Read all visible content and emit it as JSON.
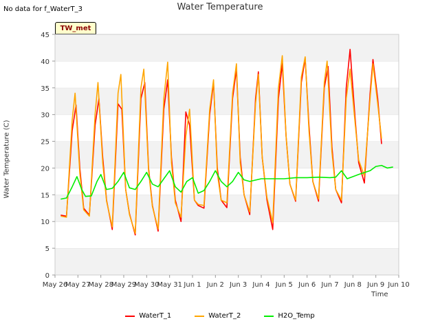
{
  "header": {
    "note": "No data for f_WaterT_3",
    "title": "Water Temperature",
    "badge": "TW_met"
  },
  "chart_data": {
    "type": "line",
    "title": "Water Temperature",
    "xlabel": "Time",
    "ylabel": "Water Temperature (C)",
    "xlim": [
      "2024-05-26",
      "2024-06-10"
    ],
    "ylim": [
      0,
      45
    ],
    "x_ticks": [
      "May 26",
      "May 27",
      "May 28",
      "May 29",
      "May 30",
      "May 31",
      "Jun 1",
      "Jun 2",
      "Jun 3",
      "Jun 4",
      "Jun 5",
      "Jun 6",
      "Jun 7",
      "Jun 8",
      "Jun 9",
      "Jun 10"
    ],
    "y_ticks": [
      0,
      5,
      10,
      15,
      20,
      25,
      30,
      35,
      40,
      45
    ],
    "grid": true,
    "legend_position": "bottom",
    "series": [
      {
        "name": "WaterT_1",
        "color": "#ff0000",
        "points": [
          [
            "2024-05-26T06:00",
            11.2
          ],
          [
            "2024-05-26T12:00",
            11.0
          ],
          [
            "2024-05-26T18:00",
            27.0
          ],
          [
            "2024-05-26T22:00",
            31.8
          ],
          [
            "2024-05-27T02:00",
            20.0
          ],
          [
            "2024-05-27T06:00",
            12.5
          ],
          [
            "2024-05-27T12:00",
            11.2
          ],
          [
            "2024-05-27T18:00",
            28.0
          ],
          [
            "2024-05-27T22:00",
            33.0
          ],
          [
            "2024-05-28T02:00",
            22.0
          ],
          [
            "2024-05-28T06:00",
            14.0
          ],
          [
            "2024-05-28T12:00",
            8.5
          ],
          [
            "2024-05-28T18:00",
            32.0
          ],
          [
            "2024-05-28T22:00",
            31.0
          ],
          [
            "2024-05-29T02:00",
            16.0
          ],
          [
            "2024-05-29T06:00",
            11.5
          ],
          [
            "2024-05-29T12:00",
            7.5
          ],
          [
            "2024-05-29T18:00",
            33.0
          ],
          [
            "2024-05-29T22:00",
            36.0
          ],
          [
            "2024-05-30T02:00",
            20.0
          ],
          [
            "2024-05-30T06:00",
            13.0
          ],
          [
            "2024-05-30T12:00",
            8.2
          ],
          [
            "2024-05-30T18:00",
            31.0
          ],
          [
            "2024-05-30T22:00",
            36.5
          ],
          [
            "2024-05-31T02:00",
            22.0
          ],
          [
            "2024-05-31T06:00",
            14.0
          ],
          [
            "2024-05-31T12:00",
            10.0
          ],
          [
            "2024-05-31T17:00",
            30.5
          ],
          [
            "2024-05-31T21:00",
            28.0
          ],
          [
            "2024-06-01T02:00",
            14.0
          ],
          [
            "2024-06-01T06:00",
            13.0
          ],
          [
            "2024-06-01T12:00",
            12.5
          ],
          [
            "2024-06-01T18:00",
            30.0
          ],
          [
            "2024-06-01T22:00",
            36.0
          ],
          [
            "2024-06-02T02:00",
            20.0
          ],
          [
            "2024-06-02T06:00",
            14.0
          ],
          [
            "2024-06-02T12:00",
            12.6
          ],
          [
            "2024-06-02T18:00",
            33.0
          ],
          [
            "2024-06-02T22:00",
            38.5
          ],
          [
            "2024-06-03T02:00",
            22.0
          ],
          [
            "2024-06-03T06:00",
            15.0
          ],
          [
            "2024-06-03T12:00",
            11.3
          ],
          [
            "2024-06-03T18:00",
            33.0
          ],
          [
            "2024-06-03T21:00",
            38.0
          ],
          [
            "2024-06-04T01:00",
            22.0
          ],
          [
            "2024-06-04T06:00",
            14.0
          ],
          [
            "2024-06-04T12:00",
            8.5
          ],
          [
            "2024-06-04T18:00",
            33.0
          ],
          [
            "2024-06-04T22:00",
            39.5
          ],
          [
            "2024-06-05T02:00",
            26.0
          ],
          [
            "2024-06-05T06:00",
            17.0
          ],
          [
            "2024-06-05T12:00",
            13.8
          ],
          [
            "2024-06-05T18:00",
            36.0
          ],
          [
            "2024-06-05T22:00",
            40.5
          ],
          [
            "2024-06-06T02:00",
            28.0
          ],
          [
            "2024-06-06T06:00",
            17.5
          ],
          [
            "2024-06-06T12:00",
            13.8
          ],
          [
            "2024-06-06T18:00",
            35.0
          ],
          [
            "2024-06-06T22:00",
            39.0
          ],
          [
            "2024-06-07T02:00",
            24.0
          ],
          [
            "2024-06-07T06:00",
            16.0
          ],
          [
            "2024-06-07T12:00",
            13.5
          ],
          [
            "2024-06-07T17:00",
            35.0
          ],
          [
            "2024-06-07T21:00",
            42.2
          ],
          [
            "2024-06-08T02:00",
            30.0
          ],
          [
            "2024-06-08T06:00",
            21.0
          ],
          [
            "2024-06-08T12:00",
            17.2
          ],
          [
            "2024-06-08T18:00",
            34.0
          ],
          [
            "2024-06-08T21:00",
            40.3
          ],
          [
            "2024-06-09T02:00",
            33.0
          ],
          [
            "2024-06-09T06:00",
            24.5
          ]
        ]
      },
      {
        "name": "WaterT_2",
        "color": "#ffa500",
        "points": [
          [
            "2024-05-26T06:00",
            11.0
          ],
          [
            "2024-05-26T12:00",
            10.8
          ],
          [
            "2024-05-26T18:00",
            29.0
          ],
          [
            "2024-05-26T21:00",
            34.0
          ],
          [
            "2024-05-27T02:00",
            19.0
          ],
          [
            "2024-05-27T06:00",
            12.2
          ],
          [
            "2024-05-27T12:00",
            11.0
          ],
          [
            "2024-05-27T18:00",
            30.0
          ],
          [
            "2024-05-27T21:00",
            36.0
          ],
          [
            "2024-05-28T02:00",
            21.0
          ],
          [
            "2024-05-28T06:00",
            13.8
          ],
          [
            "2024-05-28T12:00",
            9.0
          ],
          [
            "2024-05-28T18:00",
            34.0
          ],
          [
            "2024-05-28T21:00",
            37.5
          ],
          [
            "2024-05-29T02:00",
            16.0
          ],
          [
            "2024-05-29T06:00",
            11.3
          ],
          [
            "2024-05-29T12:00",
            7.8
          ],
          [
            "2024-05-29T18:00",
            35.0
          ],
          [
            "2024-05-29T21:00",
            38.5
          ],
          [
            "2024-05-30T02:00",
            19.5
          ],
          [
            "2024-05-30T06:00",
            12.8
          ],
          [
            "2024-05-30T12:00",
            8.6
          ],
          [
            "2024-05-30T18:00",
            33.0
          ],
          [
            "2024-05-30T22:00",
            39.8
          ],
          [
            "2024-05-31T02:00",
            21.0
          ],
          [
            "2024-05-31T06:00",
            13.5
          ],
          [
            "2024-05-31T12:00",
            10.8
          ],
          [
            "2024-05-31T17:00",
            26.0
          ],
          [
            "2024-05-31T21:00",
            31.0
          ],
          [
            "2024-06-01T02:00",
            14.0
          ],
          [
            "2024-06-01T06:00",
            13.2
          ],
          [
            "2024-06-01T12:00",
            13.0
          ],
          [
            "2024-06-01T18:00",
            31.0
          ],
          [
            "2024-06-01T22:00",
            36.5
          ],
          [
            "2024-06-02T02:00",
            19.0
          ],
          [
            "2024-06-02T06:00",
            14.0
          ],
          [
            "2024-06-02T12:00",
            13.5
          ],
          [
            "2024-06-02T18:00",
            34.0
          ],
          [
            "2024-06-02T22:00",
            39.5
          ],
          [
            "2024-06-03T02:00",
            21.0
          ],
          [
            "2024-06-03T06:00",
            15.0
          ],
          [
            "2024-06-03T12:00",
            11.8
          ],
          [
            "2024-06-03T18:00",
            32.0
          ],
          [
            "2024-06-03T21:00",
            37.5
          ],
          [
            "2024-06-04T01:00",
            22.0
          ],
          [
            "2024-06-04T06:00",
            14.5
          ],
          [
            "2024-06-04T12:00",
            9.8
          ],
          [
            "2024-06-04T18:00",
            35.0
          ],
          [
            "2024-06-04T22:00",
            41.0
          ],
          [
            "2024-06-05T02:00",
            26.0
          ],
          [
            "2024-06-05T06:00",
            17.0
          ],
          [
            "2024-06-05T12:00",
            14.0
          ],
          [
            "2024-06-05T18:00",
            37.0
          ],
          [
            "2024-06-05T22:00",
            40.8
          ],
          [
            "2024-06-06T02:00",
            27.0
          ],
          [
            "2024-06-06T06:00",
            17.5
          ],
          [
            "2024-06-06T12:00",
            14.2
          ],
          [
            "2024-06-06T18:00",
            36.0
          ],
          [
            "2024-06-06T21:00",
            40.0
          ],
          [
            "2024-06-07T02:00",
            23.0
          ],
          [
            "2024-06-07T06:00",
            16.0
          ],
          [
            "2024-06-07T12:00",
            14.0
          ],
          [
            "2024-06-07T17:00",
            33.0
          ],
          [
            "2024-06-07T21:00",
            38.5
          ],
          [
            "2024-06-08T02:00",
            29.0
          ],
          [
            "2024-06-08T06:00",
            21.5
          ],
          [
            "2024-06-08T12:00",
            18.5
          ],
          [
            "2024-06-08T18:00",
            33.0
          ],
          [
            "2024-06-08T21:00",
            39.5
          ],
          [
            "2024-06-09T02:00",
            32.0
          ],
          [
            "2024-06-09T06:00",
            25.5
          ]
        ]
      },
      {
        "name": "H2O_Temp",
        "color": "#00ee00",
        "points": [
          [
            "2024-05-26T06:00",
            14.2
          ],
          [
            "2024-05-26T12:00",
            14.4
          ],
          [
            "2024-05-26T18:00",
            16.5
          ],
          [
            "2024-05-26T23:00",
            18.4
          ],
          [
            "2024-05-27T04:00",
            16.0
          ],
          [
            "2024-05-27T08:00",
            14.7
          ],
          [
            "2024-05-27T14:00",
            14.8
          ],
          [
            "2024-05-27T20:00",
            17.5
          ],
          [
            "2024-05-28T00:00",
            18.8
          ],
          [
            "2024-05-28T06:00",
            16.0
          ],
          [
            "2024-05-28T12:00",
            16.2
          ],
          [
            "2024-05-28T18:00",
            17.5
          ],
          [
            "2024-05-29T00:00",
            19.2
          ],
          [
            "2024-05-29T06:00",
            16.3
          ],
          [
            "2024-05-29T12:00",
            16.0
          ],
          [
            "2024-05-29T18:00",
            17.5
          ],
          [
            "2024-05-30T00:00",
            19.2
          ],
          [
            "2024-05-30T06:00",
            17.0
          ],
          [
            "2024-05-30T12:00",
            16.5
          ],
          [
            "2024-05-30T18:00",
            18.0
          ],
          [
            "2024-05-31T00:00",
            19.5
          ],
          [
            "2024-05-31T06:00",
            16.5
          ],
          [
            "2024-05-31T12:00",
            15.5
          ],
          [
            "2024-05-31T18:00",
            17.5
          ],
          [
            "2024-06-01T00:00",
            18.2
          ],
          [
            "2024-06-01T06:00",
            15.3
          ],
          [
            "2024-06-01T12:00",
            15.8
          ],
          [
            "2024-06-01T18:00",
            17.5
          ],
          [
            "2024-06-02T00:00",
            19.5
          ],
          [
            "2024-06-02T06:00",
            17.5
          ],
          [
            "2024-06-02T12:00",
            16.5
          ],
          [
            "2024-06-02T18:00",
            17.5
          ],
          [
            "2024-06-03T00:00",
            19.2
          ],
          [
            "2024-06-03T06:00",
            17.8
          ],
          [
            "2024-06-03T12:00",
            17.5
          ],
          [
            "2024-06-04T00:00",
            18.0
          ],
          [
            "2024-06-05T00:00",
            18.0
          ],
          [
            "2024-06-05T12:00",
            18.2
          ],
          [
            "2024-06-06T00:00",
            18.2
          ],
          [
            "2024-06-06T12:00",
            18.3
          ],
          [
            "2024-06-07T00:00",
            18.2
          ],
          [
            "2024-06-07T06:00",
            18.3
          ],
          [
            "2024-06-07T12:00",
            19.5
          ],
          [
            "2024-06-07T18:00",
            18.0
          ],
          [
            "2024-06-08T06:00",
            18.8
          ],
          [
            "2024-06-08T18:00",
            19.5
          ],
          [
            "2024-06-09T00:00",
            20.3
          ],
          [
            "2024-06-09T06:00",
            20.5
          ],
          [
            "2024-06-09T12:00",
            20.0
          ],
          [
            "2024-06-09T18:00",
            20.2
          ]
        ]
      }
    ]
  }
}
